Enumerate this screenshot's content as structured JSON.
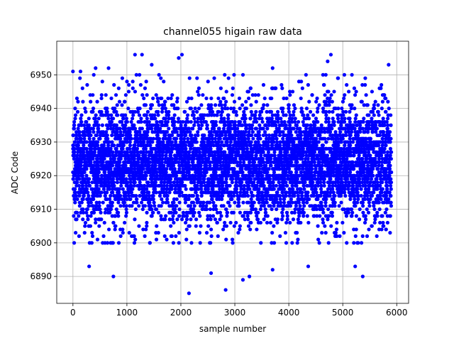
{
  "chart_data": {
    "type": "scatter",
    "title": "channel055 higain raw data",
    "xlabel": "sample number",
    "ylabel": "ADC Code",
    "xlim": [
      -300,
      6220
    ],
    "ylim": [
      6882,
      6960
    ],
    "xticks": [
      0,
      1000,
      2000,
      3000,
      4000,
      5000,
      6000
    ],
    "yticks": [
      6890,
      6900,
      6910,
      6920,
      6930,
      6940,
      6950
    ],
    "grid": true,
    "marker_color": "#0000ff",
    "series": [
      {
        "x_start": 0,
        "x_end": 5900,
        "n_points": 5900,
        "center": 6924,
        "typical_range": [
          6900,
          6950
        ],
        "outliers": [
          {
            "x": 2150,
            "y": 6885
          },
          {
            "x": 2830,
            "y": 6886
          },
          {
            "x": 3150,
            "y": 6889
          },
          {
            "x": 3270,
            "y": 6890
          },
          {
            "x": 750,
            "y": 6890
          },
          {
            "x": 5370,
            "y": 6890
          },
          {
            "x": 300,
            "y": 6893
          },
          {
            "x": 4360,
            "y": 6893
          },
          {
            "x": 5230,
            "y": 6893
          },
          {
            "x": 3700,
            "y": 6892
          },
          {
            "x": 2560,
            "y": 6891
          },
          {
            "x": 1150,
            "y": 6956
          },
          {
            "x": 1280,
            "y": 6956
          },
          {
            "x": 2020,
            "y": 6956
          },
          {
            "x": 4780,
            "y": 6956
          },
          {
            "x": 5850,
            "y": 6953
          },
          {
            "x": 1460,
            "y": 6953
          },
          {
            "x": 4720,
            "y": 6954
          },
          {
            "x": 1960,
            "y": 6955
          },
          {
            "x": 0,
            "y": 6951
          },
          {
            "x": 140,
            "y": 6951
          },
          {
            "x": 660,
            "y": 6952
          },
          {
            "x": 420,
            "y": 6952
          },
          {
            "x": 3700,
            "y": 6952
          },
          {
            "x": 5030,
            "y": 6950
          }
        ]
      }
    ]
  }
}
